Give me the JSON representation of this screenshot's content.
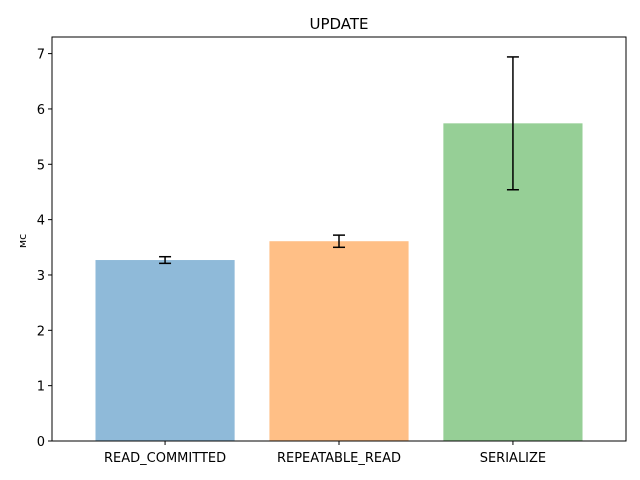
{
  "chart_data": {
    "type": "bar",
    "title": "UPDATE",
    "xlabel": "",
    "ylabel": "мс",
    "categories": [
      "READ_COMMITTED",
      "REPEATABLE_READ",
      "SERIALIZE"
    ],
    "values": [
      3.27,
      3.61,
      5.74
    ],
    "errors": [
      0.06,
      0.11,
      1.2
    ],
    "colors": [
      "#8fbad9",
      "#ffbf86",
      "#96cf96"
    ],
    "ylim": [
      0,
      7.3
    ],
    "yticks": [
      "0",
      "1",
      "2",
      "3",
      "4",
      "5",
      "6",
      "7"
    ],
    "grid": false
  }
}
